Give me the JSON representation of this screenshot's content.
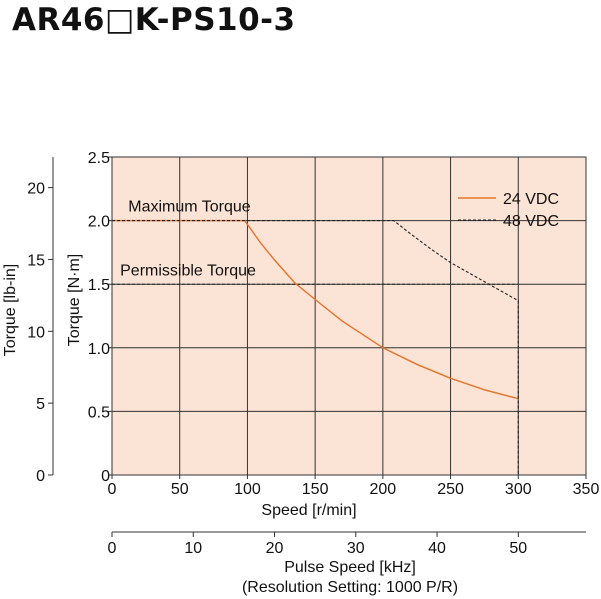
{
  "title": "AR46□K-PS10-3",
  "chart_data": {
    "type": "line",
    "x": {
      "label": "Speed [r/min]",
      "lim": [
        0,
        350
      ],
      "ticks": [
        0,
        50,
        100,
        150,
        200,
        250,
        300,
        350
      ]
    },
    "y": {
      "label": "Torque [N·m]",
      "lim": [
        0,
        2.5
      ],
      "ticks": [
        "0",
        "0.5",
        "1.0",
        "1.5",
        "2.0",
        "2.5"
      ]
    },
    "y2": {
      "label": "Torque [lb-in]",
      "lim": [
        0,
        22.13
      ],
      "ticks": [
        0,
        5,
        10,
        15,
        20
      ]
    },
    "x2": {
      "label": "Pulse Speed [kHz]",
      "sublabel": "(Resolution Setting: 1000 P/R)",
      "lim": [
        0,
        58.33
      ],
      "ticks": [
        0,
        10,
        20,
        30,
        40,
        50
      ]
    },
    "grid": true,
    "legend_position": "top-right",
    "series": [
      {
        "name": "24 VDC",
        "color": "#e8742a",
        "style": "solid",
        "points": [
          [
            0,
            2.0
          ],
          [
            98,
            2.0
          ],
          [
            110,
            1.82
          ],
          [
            120,
            1.69
          ],
          [
            135,
            1.51
          ],
          [
            150,
            1.38
          ],
          [
            170,
            1.21
          ],
          [
            200,
            1.0
          ],
          [
            225,
            0.87
          ],
          [
            250,
            0.76
          ],
          [
            275,
            0.67
          ],
          [
            300,
            0.6
          ]
        ]
      },
      {
        "name": "48 VDC",
        "color": "#222222",
        "style": "dashed",
        "points": [
          [
            0,
            2.0
          ],
          [
            208,
            2.0
          ],
          [
            220,
            1.9
          ],
          [
            235,
            1.78
          ],
          [
            250,
            1.67
          ],
          [
            265,
            1.58
          ],
          [
            280,
            1.49
          ],
          [
            300,
            1.37
          ],
          [
            300,
            0
          ]
        ]
      }
    ],
    "annotations": [
      {
        "text": "Maximum Torque",
        "x": 12,
        "y": 2.07
      },
      {
        "text": "Permissible Torque",
        "x": 6,
        "y": 1.57,
        "line_y": 1.5
      }
    ]
  }
}
